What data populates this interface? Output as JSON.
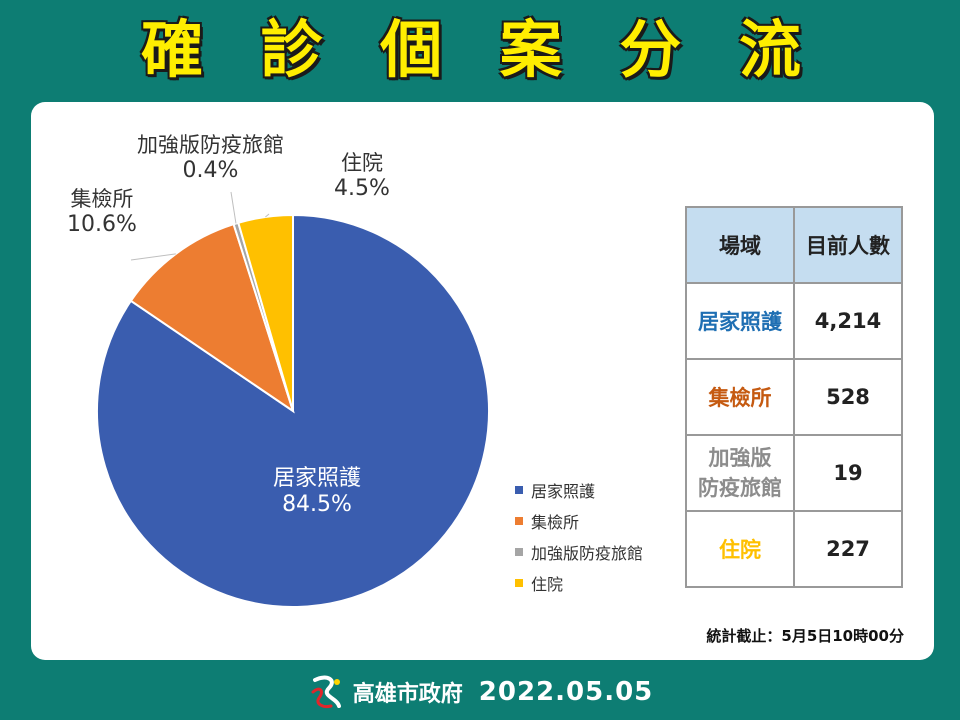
{
  "title": "確 診 個 案 分 流",
  "chart_data": {
    "type": "pie",
    "slices": [
      {
        "name": "居家照護",
        "value": 84.5,
        "label": "84.5%",
        "color": "#3a5daf"
      },
      {
        "name": "集檢所",
        "value": 10.6,
        "label": "10.6%",
        "color": "#ed7d31"
      },
      {
        "name": "加強版防疫旅館",
        "value": 0.4,
        "label": "0.4%",
        "color": "#a5a5a5"
      },
      {
        "name": "住院",
        "value": 4.5,
        "label": "4.5%",
        "color": "#ffc000"
      }
    ],
    "legend_position": "right"
  },
  "table": {
    "headers": [
      "場域",
      "目前人數"
    ],
    "rows": [
      {
        "name": "居家照護",
        "value": "4,214",
        "color": "#1f6fb3"
      },
      {
        "name": "集檢所",
        "value": "528",
        "color": "#c55a11"
      },
      {
        "name": "加強版\n防疫旅館",
        "value": "19",
        "color": "#8c8c8c"
      },
      {
        "name": "住院",
        "value": "227",
        "color": "#ffc000"
      }
    ]
  },
  "note": "統計截止：5月5日10時00分",
  "footer": {
    "org": "高雄市政府",
    "date": "2022.05.05"
  }
}
